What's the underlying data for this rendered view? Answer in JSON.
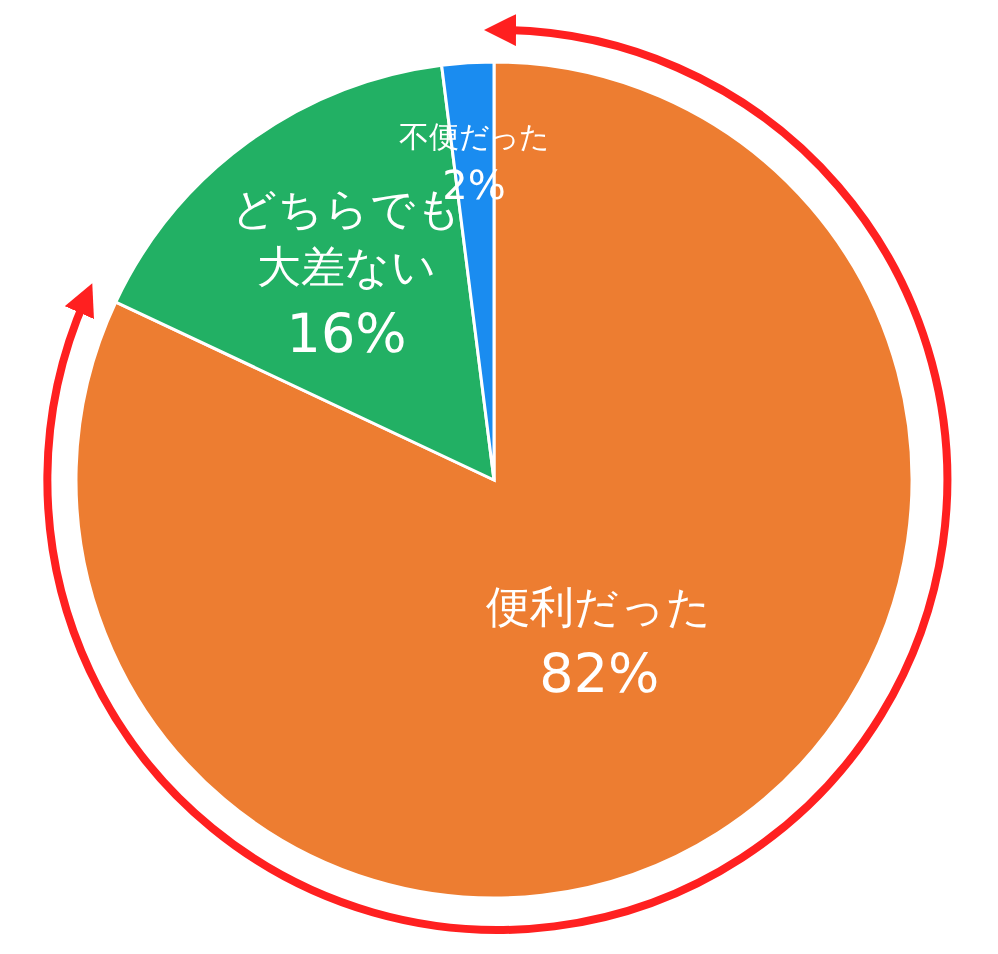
{
  "chart_data": {
    "type": "pie",
    "categories": [
      "便利だった",
      "どちらでも大差ない",
      "不便だった"
    ],
    "values": [
      82,
      16,
      2
    ],
    "colors": [
      "#ed7d31",
      "#22b064",
      "#1a8cf0"
    ],
    "value_labels": [
      "82%",
      "16%",
      "2%"
    ]
  }
}
